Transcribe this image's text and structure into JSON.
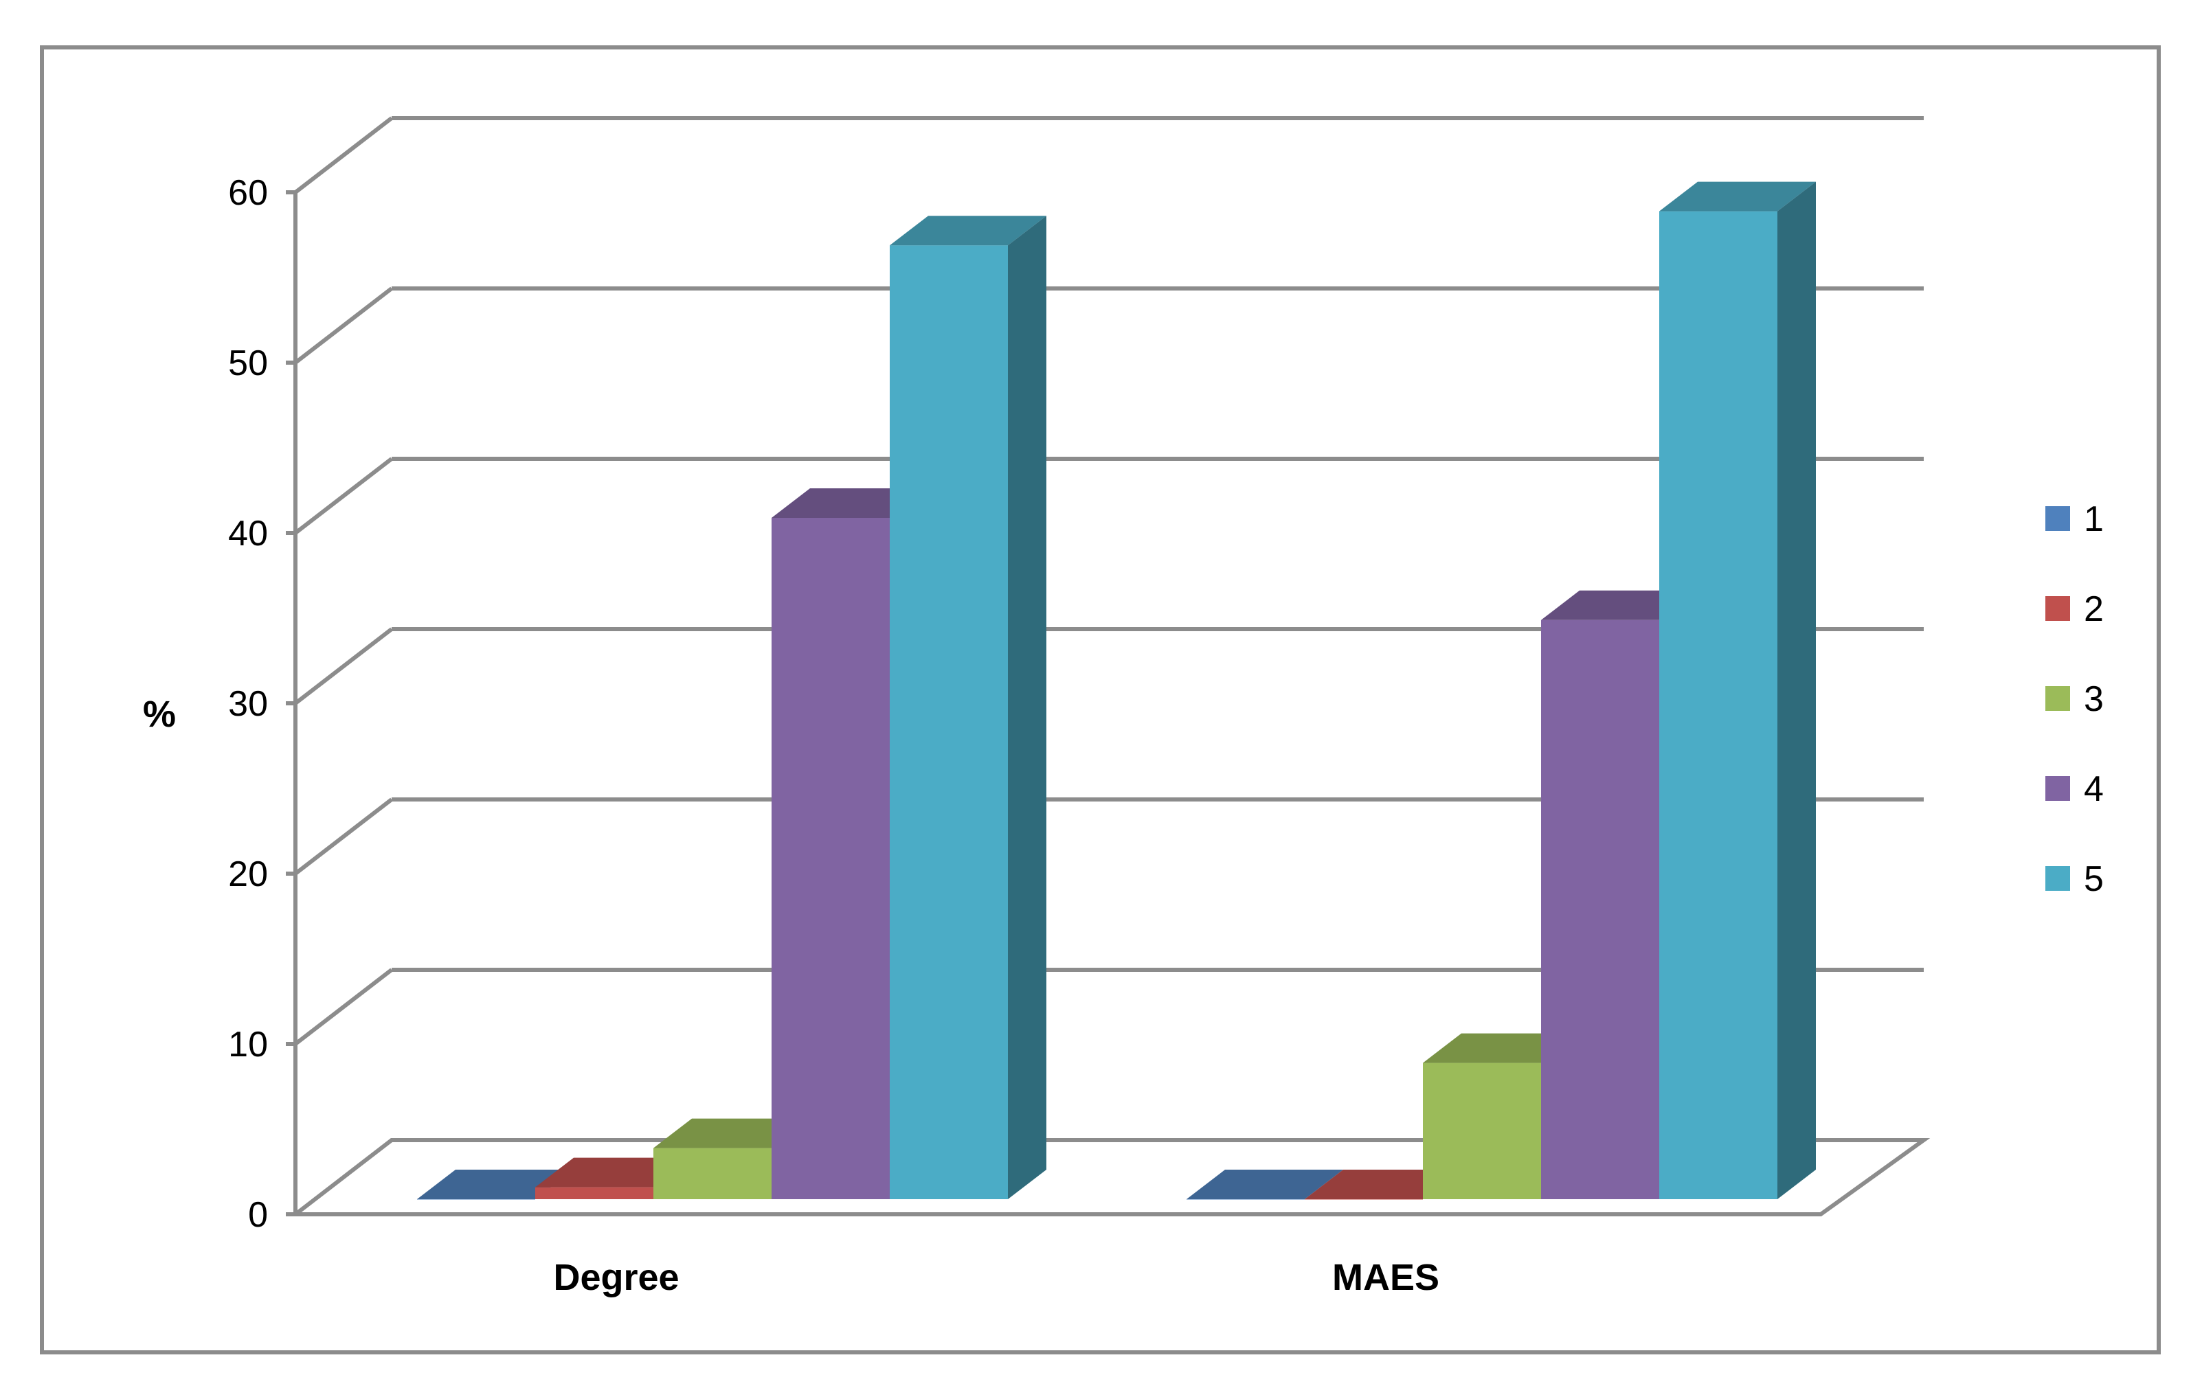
{
  "chart_data": {
    "type": "bar",
    "style": "3d-clustered-column",
    "ylabel": "%",
    "xlabel": "",
    "title": "",
    "ylim": [
      0,
      60
    ],
    "yticks": [
      0,
      10,
      20,
      30,
      40,
      50,
      60
    ],
    "categories": [
      "Degree",
      "MAES"
    ],
    "series": [
      {
        "name": "1",
        "values": [
          0,
          0
        ],
        "color": "#4F81BD"
      },
      {
        "name": "2",
        "values": [
          0.7,
          0
        ],
        "color": "#C0504D"
      },
      {
        "name": "3",
        "values": [
          3,
          8
        ],
        "color": "#9BBB59"
      },
      {
        "name": "4",
        "values": [
          40,
          34
        ],
        "color": "#8064A2"
      },
      {
        "name": "5",
        "values": [
          56,
          58
        ],
        "color": "#4BACC6"
      }
    ],
    "grid": true,
    "legend": "right"
  }
}
